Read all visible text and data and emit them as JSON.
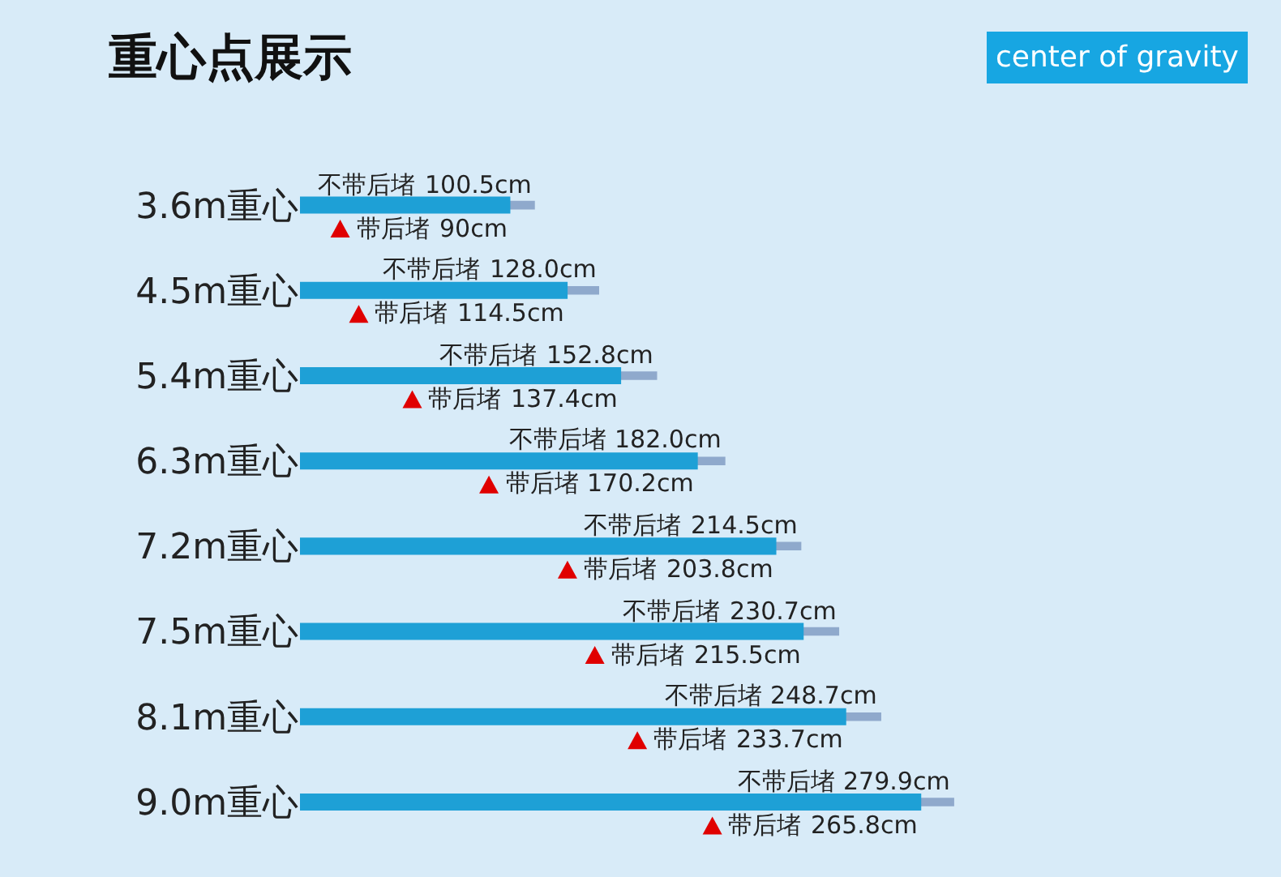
{
  "chart_data": {
    "type": "bar",
    "orientation": "horizontal",
    "title": "重心点展示",
    "subtitle": "center of gravity",
    "categories": [
      "3.6m重心",
      "4.5m重心",
      "5.4m重心",
      "6.3m重心",
      "7.2m重心",
      "7.5m重心",
      "8.1m重心",
      "9.0m重心"
    ],
    "series": [
      {
        "name": "带后堵",
        "color": "#1ea0d6",
        "values": [
          90,
          114.5,
          137.4,
          170.2,
          203.8,
          215.5,
          233.7,
          265.8
        ],
        "value_labels": [
          "90cm",
          "114.5cm",
          "137.4cm",
          "170.2cm",
          "203.8cm",
          "215.5cm",
          "233.7cm",
          "265.8cm"
        ]
      },
      {
        "name": "不带后堵",
        "color": "#8fa9cc",
        "values": [
          100.5,
          128.0,
          152.8,
          182.0,
          214.5,
          230.7,
          248.7,
          279.9
        ],
        "value_labels": [
          "100.5cm",
          "128.0cm",
          "152.8cm",
          "182.0cm",
          "214.5cm",
          "230.7cm",
          "248.7cm",
          "279.9cm"
        ]
      }
    ],
    "tick_labels": "y",
    "grid": false,
    "legend": false
  }
}
